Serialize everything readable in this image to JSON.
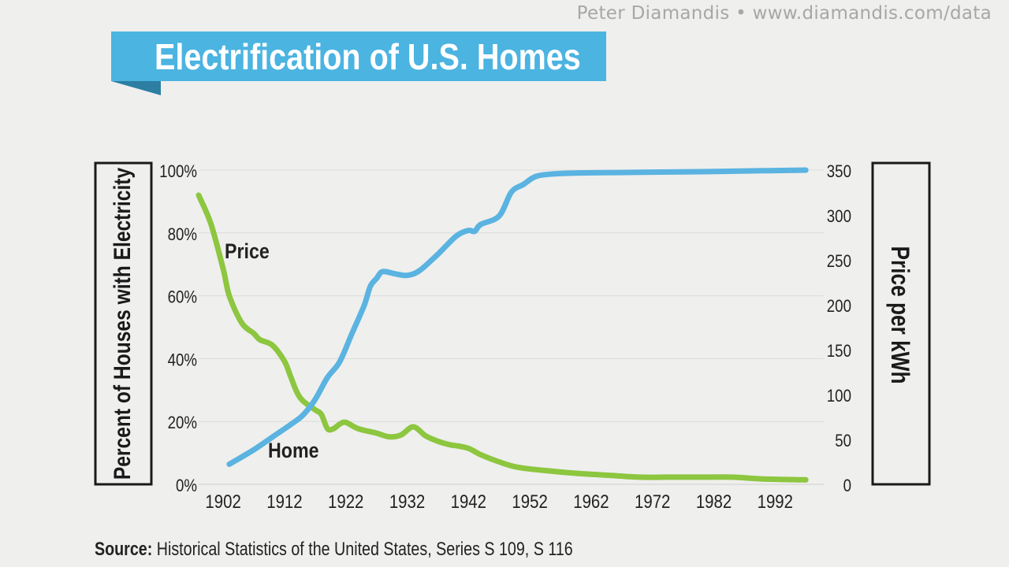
{
  "credit": "Peter Diamandis  •  www.diamandis.com/data",
  "title": "Electrification of U.S. Homes",
  "source_label": "Source:",
  "source_text": "Historical Statistics of the United States, Series S 109, S 116",
  "colors": {
    "banner": "#4bb4e1",
    "home": "#5ab3e0",
    "price": "#8dc63f"
  },
  "chart_data": {
    "type": "line",
    "ylabel": "Percent of Houses with Electricity",
    "y2label": "Price per kWh",
    "ylim": [
      0,
      100
    ],
    "y2lim": [
      0,
      350
    ],
    "yticks": [
      "0%",
      "20%",
      "40%",
      "60%",
      "80%",
      "100%"
    ],
    "y2ticks": [
      "0",
      "50",
      "100",
      "150",
      "200",
      "250",
      "300",
      "350"
    ],
    "xlim": [
      1898,
      1998
    ],
    "xticks": [
      "1902",
      "1912",
      "1922",
      "1932",
      "1942",
      "1952",
      "1962",
      "1972",
      "1982",
      "1992"
    ],
    "grid": "horizontal",
    "annotations": [
      {
        "text": "Price",
        "series": "Price"
      },
      {
        "text": "Home",
        "series": "Home"
      }
    ],
    "series": [
      {
        "name": "Home",
        "axis": "left",
        "x": [
          1903,
          1907,
          1910,
          1913,
          1915,
          1917,
          1919,
          1921,
          1923,
          1925,
          1926,
          1927,
          1928,
          1930,
          1932,
          1934,
          1937,
          1940,
          1942,
          1943,
          1944,
          1947,
          1949,
          1951,
          1953,
          1956,
          1960,
          1970,
          1980,
          1990,
          1997
        ],
        "y": [
          6.4,
          11,
          15,
          19,
          22,
          27,
          34,
          39,
          48,
          57,
          63,
          65.5,
          67.7,
          67,
          66.5,
          68,
          73.2,
          79,
          80.8,
          80.5,
          82.7,
          85.4,
          93,
          95.5,
          98,
          98.8,
          99.1,
          99.3,
          99.5,
          99.8,
          100
        ]
      },
      {
        "name": "Price",
        "axis": "right",
        "x": [
          1898,
          1900,
          1902,
          1903,
          1905,
          1907,
          1908,
          1910,
          1912,
          1913,
          1914,
          1915,
          1917,
          1918,
          1919,
          1920,
          1921,
          1922,
          1924,
          1927,
          1929,
          1931,
          1933,
          1935,
          1937,
          1939,
          1940,
          1942,
          1944,
          1947,
          1950,
          1955,
          1960,
          1965,
          1970,
          1974,
          1975,
          1977,
          1980,
          1985,
          1990,
          1997
        ],
        "y": [
          322,
          290,
          240,
          210,
          180,
          168,
          161,
          155,
          137,
          120,
          103,
          93,
          83,
          78,
          62,
          62,
          67,
          69,
          62,
          57,
          53,
          55,
          64,
          54,
          48,
          44,
          43,
          40,
          33,
          25,
          19,
          15,
          12,
          10,
          8,
          8,
          8,
          8,
          8,
          8,
          6,
          5
        ]
      }
    ]
  }
}
